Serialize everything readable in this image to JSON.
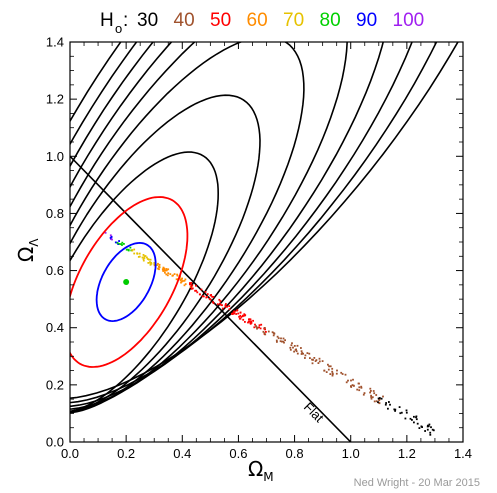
{
  "chart_data": {
    "type": "scatter",
    "legend": {
      "prefix": "H",
      "prefix_sub": "o",
      "separator": ":",
      "entries": [
        {
          "label": "30",
          "color": "#000000"
        },
        {
          "label": "40",
          "color": "#a0522d"
        },
        {
          "label": "50",
          "color": "#ff0000"
        },
        {
          "label": "60",
          "color": "#ff8c00"
        },
        {
          "label": "70",
          "color": "#e6c200"
        },
        {
          "label": "80",
          "color": "#00d000"
        },
        {
          "label": "90",
          "color": "#0000ff"
        },
        {
          "label": "100",
          "color": "#a020f0"
        }
      ],
      "placement": "top"
    },
    "xlabel": "Ω",
    "xlabel_sub": "M",
    "ylabel": "Ω",
    "ylabel_sub": "Λ",
    "xlim": [
      0.0,
      1.4
    ],
    "ylim": [
      0.0,
      1.4
    ],
    "xticks": [
      "0.0",
      "0.2",
      "0.4",
      "0.6",
      "0.8",
      "1.0",
      "1.2",
      "1.4"
    ],
    "yticks": [
      "0.0",
      "0.2",
      "0.4",
      "0.6",
      "0.8",
      "1.0",
      "1.2",
      "1.4"
    ],
    "flat_line": {
      "label": "Flat",
      "points": [
        [
          0.0,
          1.0
        ],
        [
          1.0,
          0.0
        ]
      ]
    },
    "best_fit": {
      "x": 0.2,
      "y": 0.56,
      "color": "#00cc00"
    },
    "confidence_contours": [
      {
        "color": "#0000ff",
        "cx": 0.2,
        "cy": 0.56,
        "a": 0.085,
        "b": 0.15,
        "angle_deg": 60
      },
      {
        "color": "#ff0000",
        "cx": 0.2,
        "cy": 0.56,
        "a": 0.165,
        "b": 0.33,
        "angle_deg": 60
      }
    ],
    "black_contours": [
      {
        "cx": 0.2,
        "cy": 0.56,
        "a": 0.21,
        "b": 0.52,
        "angle_deg": 58
      },
      {
        "cx": 0.27,
        "cy": 0.66,
        "a": 0.25,
        "b": 0.64,
        "angle_deg": 57
      },
      {
        "cx": 0.34,
        "cy": 0.76,
        "a": 0.29,
        "b": 0.77,
        "angle_deg": 56
      },
      {
        "cx": 0.41,
        "cy": 0.86,
        "a": 0.33,
        "b": 0.89,
        "angle_deg": 55
      },
      {
        "cx": 0.48,
        "cy": 0.96,
        "a": 0.37,
        "b": 1.01,
        "angle_deg": 54
      },
      {
        "cx": 0.55,
        "cy": 1.06,
        "a": 0.41,
        "b": 1.13,
        "angle_deg": 53
      },
      {
        "cx": 0.62,
        "cy": 1.16,
        "a": 0.45,
        "b": 1.25,
        "angle_deg": 52
      },
      {
        "cx": 0.69,
        "cy": 1.26,
        "a": 0.49,
        "b": 1.37,
        "angle_deg": 51
      }
    ],
    "scatter_band": [
      {
        "color": "#a020f0",
        "x_range": [
          0.12,
          0.16
        ],
        "n": 6
      },
      {
        "color": "#0000ff",
        "x_range": [
          0.14,
          0.18
        ],
        "n": 6
      },
      {
        "color": "#00d000",
        "x_range": [
          0.16,
          0.22
        ],
        "n": 12
      },
      {
        "color": "#e6c200",
        "x_range": [
          0.22,
          0.32
        ],
        "n": 30
      },
      {
        "color": "#ff8c00",
        "x_range": [
          0.3,
          0.44
        ],
        "n": 45
      },
      {
        "color": "#ff0000",
        "x_range": [
          0.42,
          0.7
        ],
        "n": 90
      },
      {
        "color": "#a0522d",
        "x_range": [
          0.66,
          1.12
        ],
        "n": 110
      },
      {
        "color": "#000000",
        "x_range": [
          1.08,
          1.3
        ],
        "n": 40
      }
    ],
    "band_line": {
      "y_at_x0": 0.8,
      "slope": -0.59
    },
    "grid": false,
    "credit": "Ned Wright - 20 Mar 2015"
  }
}
